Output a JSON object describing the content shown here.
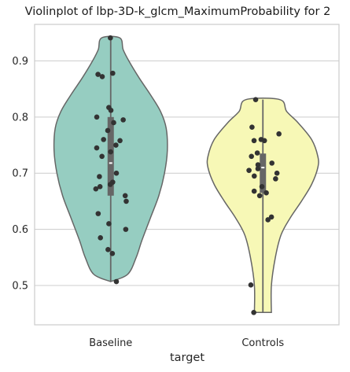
{
  "chart_data": {
    "type": "violin",
    "title": "Violinplot of lbp-3D-k_glcm_MaximumProbability for 2",
    "xlabel": "target",
    "ylabel": "",
    "ylim": [
      0.43,
      0.965
    ],
    "yticks": [
      0.5,
      0.6,
      0.7,
      0.8,
      0.9
    ],
    "ytick_labels": [
      "0.5",
      "0.6",
      "0.7",
      "0.8",
      "0.9"
    ],
    "grid": true,
    "categories": [
      "Baseline",
      "Controls"
    ],
    "series": [
      {
        "category": "Baseline",
        "color": "#96cdc1",
        "min": 0.507,
        "max": 0.941,
        "q1": 0.66,
        "median": 0.718,
        "q3": 0.8,
        "violin_profile": [
          [
            0.507,
            0.0
          ],
          [
            0.52,
            0.3
          ],
          [
            0.55,
            0.45
          ],
          [
            0.58,
            0.55
          ],
          [
            0.62,
            0.7
          ],
          [
            0.66,
            0.85
          ],
          [
            0.7,
            0.95
          ],
          [
            0.74,
            1.0
          ],
          [
            0.78,
            0.98
          ],
          [
            0.81,
            0.88
          ],
          [
            0.84,
            0.7
          ],
          [
            0.87,
            0.5
          ],
          [
            0.9,
            0.32
          ],
          [
            0.92,
            0.22
          ],
          [
            0.941,
            0.16
          ]
        ],
        "points": [
          0.941,
          0.878,
          0.876,
          0.872,
          0.817,
          0.812,
          0.8,
          0.795,
          0.79,
          0.776,
          0.76,
          0.758,
          0.75,
          0.745,
          0.738,
          0.73,
          0.7,
          0.694,
          0.684,
          0.68,
          0.676,
          0.672,
          0.66,
          0.65,
          0.628,
          0.61,
          0.6,
          0.585,
          0.564,
          0.557,
          0.507
        ]
      },
      {
        "category": "Controls",
        "color": "#f7f8b6",
        "min": 0.452,
        "max": 0.831,
        "q1": 0.665,
        "median": 0.71,
        "q3": 0.735,
        "violin_profile": [
          [
            0.452,
            0.15
          ],
          [
            0.5,
            0.15
          ],
          [
            0.55,
            0.22
          ],
          [
            0.59,
            0.32
          ],
          [
            0.62,
            0.48
          ],
          [
            0.65,
            0.68
          ],
          [
            0.68,
            0.86
          ],
          [
            0.71,
            0.97
          ],
          [
            0.73,
            0.97
          ],
          [
            0.76,
            0.86
          ],
          [
            0.79,
            0.62
          ],
          [
            0.81,
            0.42
          ],
          [
            0.831,
            0.3
          ]
        ],
        "points": [
          0.831,
          0.782,
          0.77,
          0.76,
          0.758,
          0.758,
          0.736,
          0.73,
          0.718,
          0.715,
          0.708,
          0.705,
          0.7,
          0.695,
          0.69,
          0.676,
          0.668,
          0.665,
          0.66,
          0.622,
          0.617,
          0.501,
          0.452
        ]
      }
    ]
  }
}
